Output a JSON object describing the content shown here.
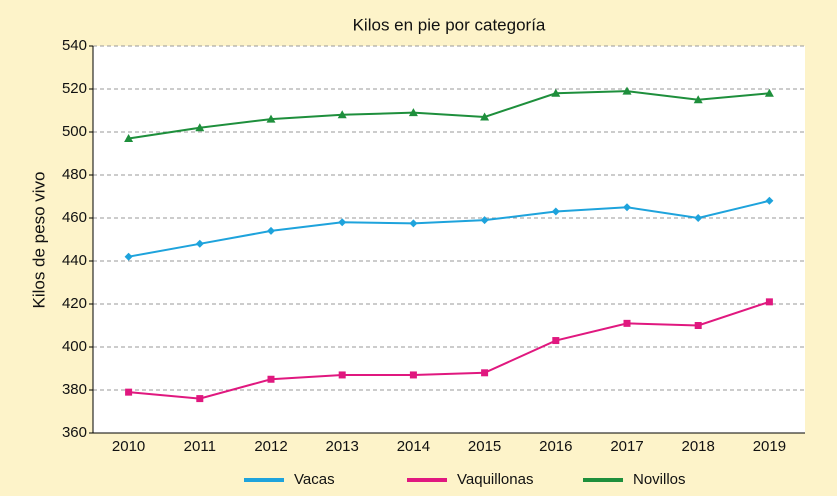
{
  "chart_data": {
    "type": "line",
    "title": "Kilos en pie por categoría",
    "y_label": "Kilos de peso vivo",
    "categories": [
      "2010",
      "2011",
      "2012",
      "2013",
      "2014",
      "2015",
      "2016",
      "2017",
      "2018",
      "2019"
    ],
    "series": [
      {
        "name": "Vacas",
        "color": "#1ea3dc",
        "marker": "diamond",
        "values": [
          442,
          448,
          454,
          458,
          457.5,
          459,
          463,
          465,
          460,
          468
        ]
      },
      {
        "name": "Vaquillonas",
        "color": "#e0187f",
        "marker": "square",
        "values": [
          379,
          376,
          385,
          387,
          387,
          388,
          403,
          411,
          410,
          421
        ]
      },
      {
        "name": "Novillos",
        "color": "#1e8f3c",
        "marker": "triangle",
        "values": [
          497,
          502,
          506,
          508,
          509,
          507,
          518,
          519,
          515,
          518
        ]
      }
    ],
    "ylim": [
      360,
      540
    ],
    "yticks": [
      360,
      380,
      400,
      420,
      440,
      460,
      480,
      500,
      520,
      540
    ],
    "grid": true,
    "legend": "bottom"
  }
}
